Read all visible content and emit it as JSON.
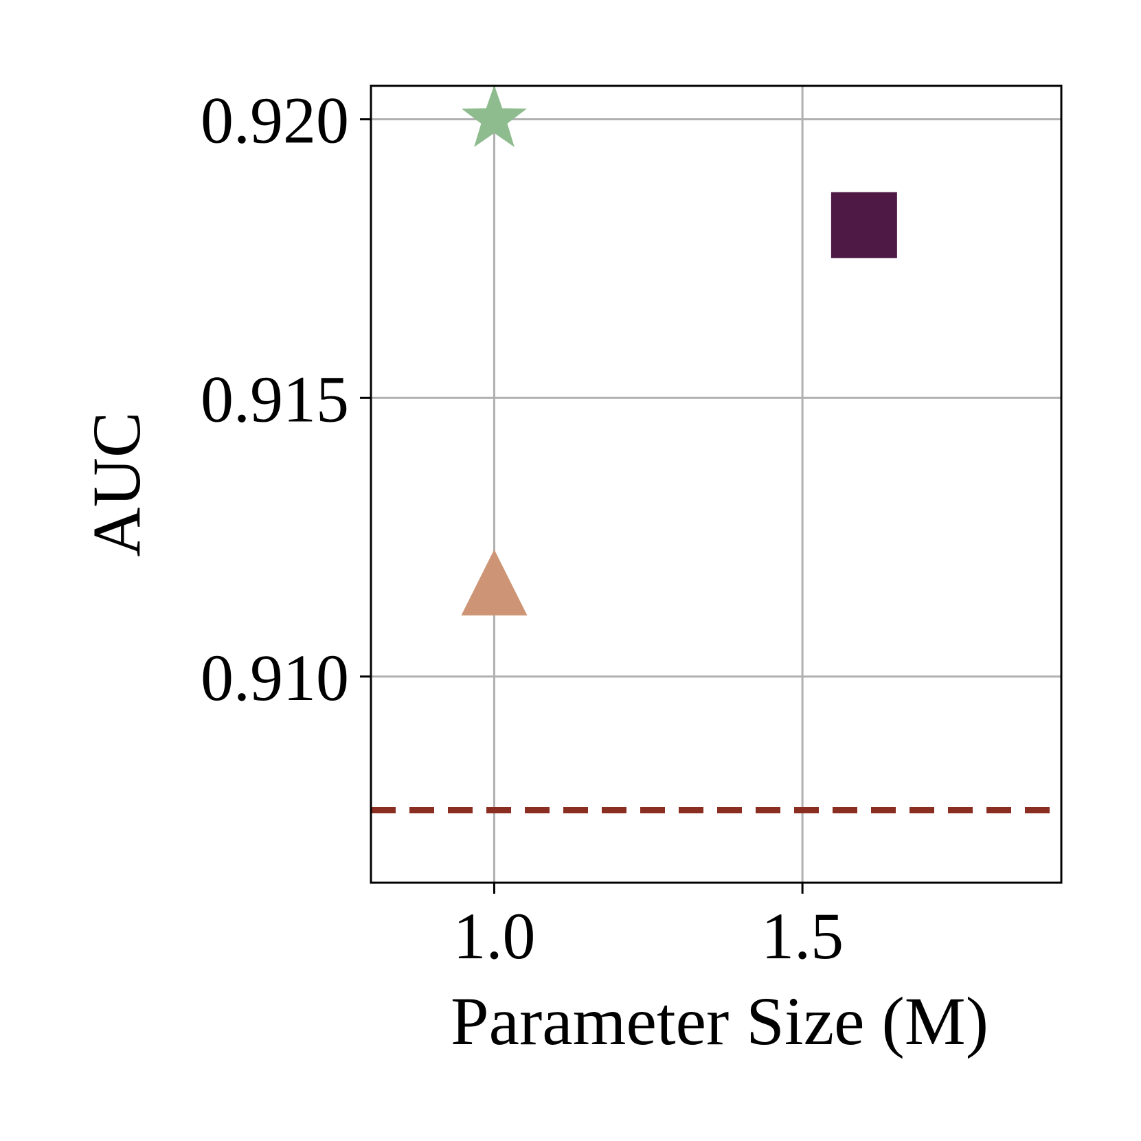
{
  "chart_data": {
    "type": "scatter",
    "xlabel": "Parameter Size (M)",
    "ylabel": "AUC",
    "xlim": [
      0.8,
      1.92
    ],
    "ylim": [
      0.9063,
      0.9206
    ],
    "x_ticks": [
      {
        "value": 1.0,
        "label": "1.0"
      },
      {
        "value": 1.5,
        "label": "1.5"
      }
    ],
    "y_ticks": [
      {
        "value": 0.91,
        "label": "0.910"
      },
      {
        "value": 0.915,
        "label": "0.915"
      },
      {
        "value": 0.92,
        "label": "0.920"
      }
    ],
    "grid": true,
    "points": [
      {
        "x": 1.0,
        "y": 0.92,
        "marker": "star",
        "color": "#8fbc8f"
      },
      {
        "x": 1.6,
        "y": 0.9181,
        "marker": "square",
        "color": "#4e1a45"
      },
      {
        "x": 1.0,
        "y": 0.9115,
        "marker": "triangle",
        "color": "#cd9575"
      }
    ],
    "reference_line": {
      "y": 0.9076,
      "style": "dashed",
      "color": "#8b2e22"
    }
  }
}
